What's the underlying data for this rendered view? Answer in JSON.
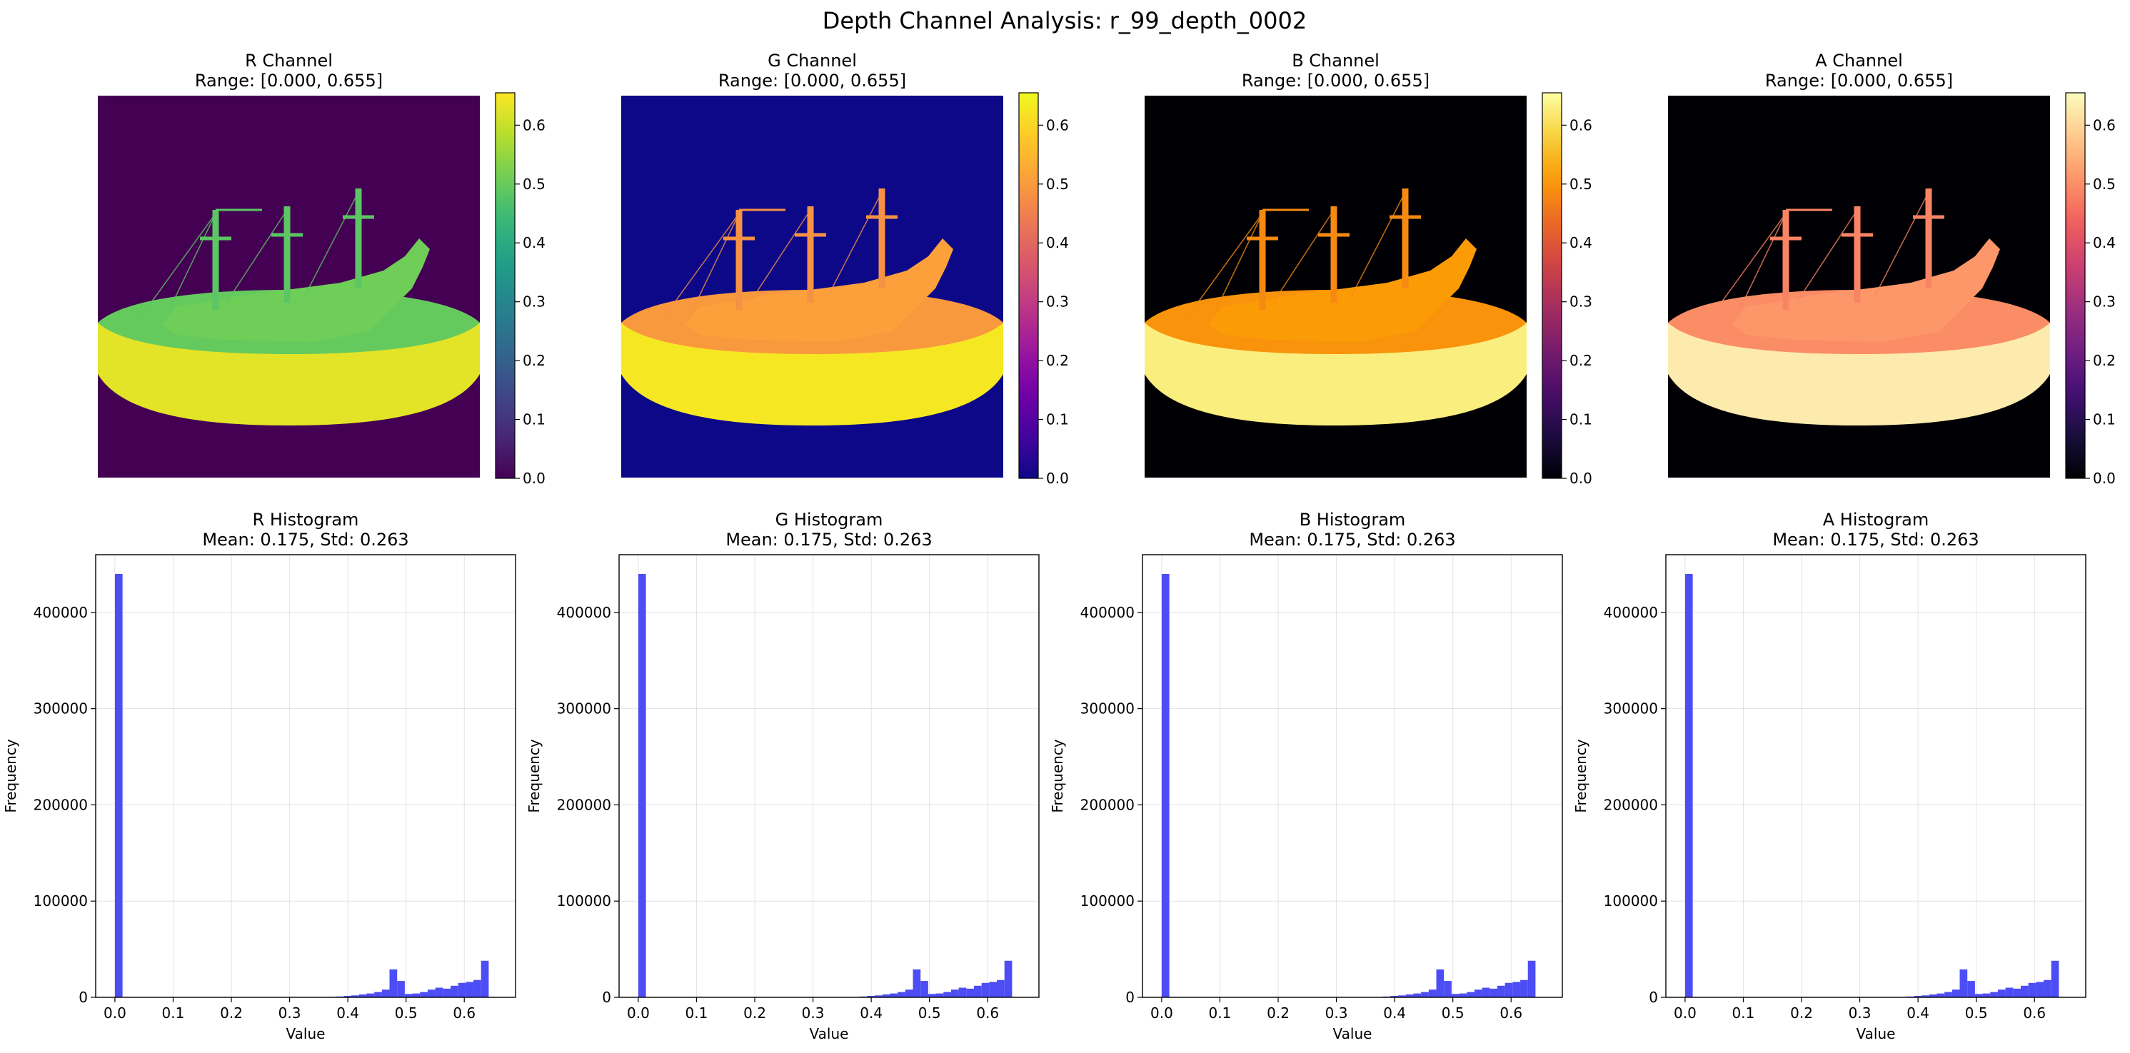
{
  "figure": {
    "suptitle": "Depth Channel Analysis: r_99_depth_0002"
  },
  "chart_data": [
    {
      "type": "heatmap",
      "channel": "R",
      "title": "R Channel",
      "subtitle": "Range: [0.000, 0.655]",
      "colormap": "viridis",
      "vmin": 0.0,
      "vmax": 0.655,
      "colorbar_ticks": [
        "0.0",
        "0.1",
        "0.2",
        "0.3",
        "0.4",
        "0.5",
        "0.6"
      ],
      "colorbar_tick_values": [
        0,
        0.1,
        0.2,
        0.3,
        0.4,
        0.5,
        0.6
      ],
      "background_value": 0.0
    },
    {
      "type": "heatmap",
      "channel": "G",
      "title": "G Channel",
      "subtitle": "Range: [0.000, 0.655]",
      "colormap": "plasma",
      "vmin": 0.0,
      "vmax": 0.655,
      "colorbar_ticks": [
        "0.0",
        "0.1",
        "0.2",
        "0.3",
        "0.4",
        "0.5",
        "0.6"
      ],
      "colorbar_tick_values": [
        0,
        0.1,
        0.2,
        0.3,
        0.4,
        0.5,
        0.6
      ],
      "background_value": 0.0
    },
    {
      "type": "heatmap",
      "channel": "B",
      "title": "B Channel",
      "subtitle": "Range: [0.000, 0.655]",
      "colormap": "inferno",
      "vmin": 0.0,
      "vmax": 0.655,
      "colorbar_ticks": [
        "0.0",
        "0.1",
        "0.2",
        "0.3",
        "0.4",
        "0.5",
        "0.6"
      ],
      "colorbar_tick_values": [
        0,
        0.1,
        0.2,
        0.3,
        0.4,
        0.5,
        0.6
      ],
      "background_value": 0.0
    },
    {
      "type": "heatmap",
      "channel": "A",
      "title": "A Channel",
      "subtitle": "Range: [0.000, 0.655]",
      "colormap": "magma",
      "vmin": 0.0,
      "vmax": 0.655,
      "colorbar_ticks": [
        "0.0",
        "0.1",
        "0.2",
        "0.3",
        "0.4",
        "0.5",
        "0.6"
      ],
      "colorbar_tick_values": [
        0,
        0.1,
        0.2,
        0.3,
        0.4,
        0.5,
        0.6
      ],
      "background_value": 0.0
    },
    {
      "type": "bar",
      "channel": "R",
      "title": "R Histogram",
      "subtitle": "Mean: 0.175, Std: 0.263",
      "xlabel": "Value",
      "ylabel": "Frequency",
      "xlim": [
        -0.033,
        0.688
      ],
      "ylim": [
        0,
        460000
      ],
      "xticks": [
        "0.0",
        "0.1",
        "0.2",
        "0.3",
        "0.4",
        "0.5",
        "0.6"
      ],
      "xtick_values": [
        0,
        0.1,
        0.2,
        0.3,
        0.4,
        0.5,
        0.6
      ],
      "yticks": [
        "0",
        "100000",
        "200000",
        "300000",
        "400000"
      ],
      "ytick_values": [
        0,
        100000,
        200000,
        300000,
        400000
      ],
      "grid": true,
      "bar_color": "#4d4df5",
      "bins": {
        "start": 0.0,
        "width": 0.0131,
        "counts": [
          440000,
          0,
          0,
          0,
          0,
          0,
          0,
          0,
          0,
          0,
          0,
          0,
          0,
          0,
          0,
          0,
          0,
          0,
          0,
          0,
          0,
          0,
          0,
          0,
          0,
          0,
          0,
          0,
          300,
          800,
          1500,
          2000,
          3000,
          4000,
          5500,
          8000,
          29000,
          17000,
          3500,
          4000,
          5500,
          8000,
          10000,
          9000,
          12000,
          15000,
          16000,
          18000,
          38000,
          0
        ]
      }
    },
    {
      "type": "bar",
      "channel": "G",
      "title": "G Histogram",
      "subtitle": "Mean: 0.175, Std: 0.263",
      "xlabel": "Value",
      "ylabel": "Frequency",
      "xlim": [
        -0.033,
        0.688
      ],
      "ylim": [
        0,
        460000
      ],
      "xticks": [
        "0.0",
        "0.1",
        "0.2",
        "0.3",
        "0.4",
        "0.5",
        "0.6"
      ],
      "xtick_values": [
        0,
        0.1,
        0.2,
        0.3,
        0.4,
        0.5,
        0.6
      ],
      "yticks": [
        "0",
        "100000",
        "200000",
        "300000",
        "400000"
      ],
      "ytick_values": [
        0,
        100000,
        200000,
        300000,
        400000
      ],
      "grid": true,
      "bar_color": "#4d4df5",
      "bins": {
        "start": 0.0,
        "width": 0.0131,
        "counts": [
          440000,
          0,
          0,
          0,
          0,
          0,
          0,
          0,
          0,
          0,
          0,
          0,
          0,
          0,
          0,
          0,
          0,
          0,
          0,
          0,
          0,
          0,
          0,
          0,
          0,
          0,
          0,
          0,
          300,
          800,
          1500,
          2000,
          3000,
          4000,
          5500,
          8000,
          29000,
          17000,
          3500,
          4000,
          5500,
          8000,
          10000,
          9000,
          12000,
          15000,
          16000,
          18000,
          38000,
          0
        ]
      }
    },
    {
      "type": "bar",
      "channel": "B",
      "title": "B Histogram",
      "subtitle": "Mean: 0.175, Std: 0.263",
      "xlabel": "Value",
      "ylabel": "Frequency",
      "xlim": [
        -0.033,
        0.688
      ],
      "ylim": [
        0,
        460000
      ],
      "xticks": [
        "0.0",
        "0.1",
        "0.2",
        "0.3",
        "0.4",
        "0.5",
        "0.6"
      ],
      "xtick_values": [
        0,
        0.1,
        0.2,
        0.3,
        0.4,
        0.5,
        0.6
      ],
      "yticks": [
        "0",
        "100000",
        "200000",
        "300000",
        "400000"
      ],
      "ytick_values": [
        0,
        100000,
        200000,
        300000,
        400000
      ],
      "grid": true,
      "bar_color": "#4d4df5",
      "bins": {
        "start": 0.0,
        "width": 0.0131,
        "counts": [
          440000,
          0,
          0,
          0,
          0,
          0,
          0,
          0,
          0,
          0,
          0,
          0,
          0,
          0,
          0,
          0,
          0,
          0,
          0,
          0,
          0,
          0,
          0,
          0,
          0,
          0,
          0,
          0,
          300,
          800,
          1500,
          2000,
          3000,
          4000,
          5500,
          8000,
          29000,
          17000,
          3500,
          4000,
          5500,
          8000,
          10000,
          9000,
          12000,
          15000,
          16000,
          18000,
          38000,
          0
        ]
      }
    },
    {
      "type": "bar",
      "channel": "A",
      "title": "A Histogram",
      "subtitle": "Mean: 0.175, Std: 0.263",
      "xlabel": "Value",
      "ylabel": "Frequency",
      "xlim": [
        -0.033,
        0.688
      ],
      "ylim": [
        0,
        460000
      ],
      "xticks": [
        "0.0",
        "0.1",
        "0.2",
        "0.3",
        "0.4",
        "0.5",
        "0.6"
      ],
      "xtick_values": [
        0,
        0.1,
        0.2,
        0.3,
        0.4,
        0.5,
        0.6
      ],
      "yticks": [
        "0",
        "100000",
        "200000",
        "300000",
        "400000"
      ],
      "ytick_values": [
        0,
        100000,
        200000,
        300000,
        400000
      ],
      "grid": true,
      "bar_color": "#4d4df5",
      "bins": {
        "start": 0.0,
        "width": 0.0131,
        "counts": [
          440000,
          0,
          0,
          0,
          0,
          0,
          0,
          0,
          0,
          0,
          0,
          0,
          0,
          0,
          0,
          0,
          0,
          0,
          0,
          0,
          0,
          0,
          0,
          0,
          0,
          0,
          0,
          0,
          300,
          800,
          1500,
          2000,
          3000,
          4000,
          5500,
          8000,
          29000,
          17000,
          3500,
          4000,
          5500,
          8000,
          10000,
          9000,
          12000,
          15000,
          16000,
          18000,
          38000,
          0
        ]
      }
    }
  ]
}
